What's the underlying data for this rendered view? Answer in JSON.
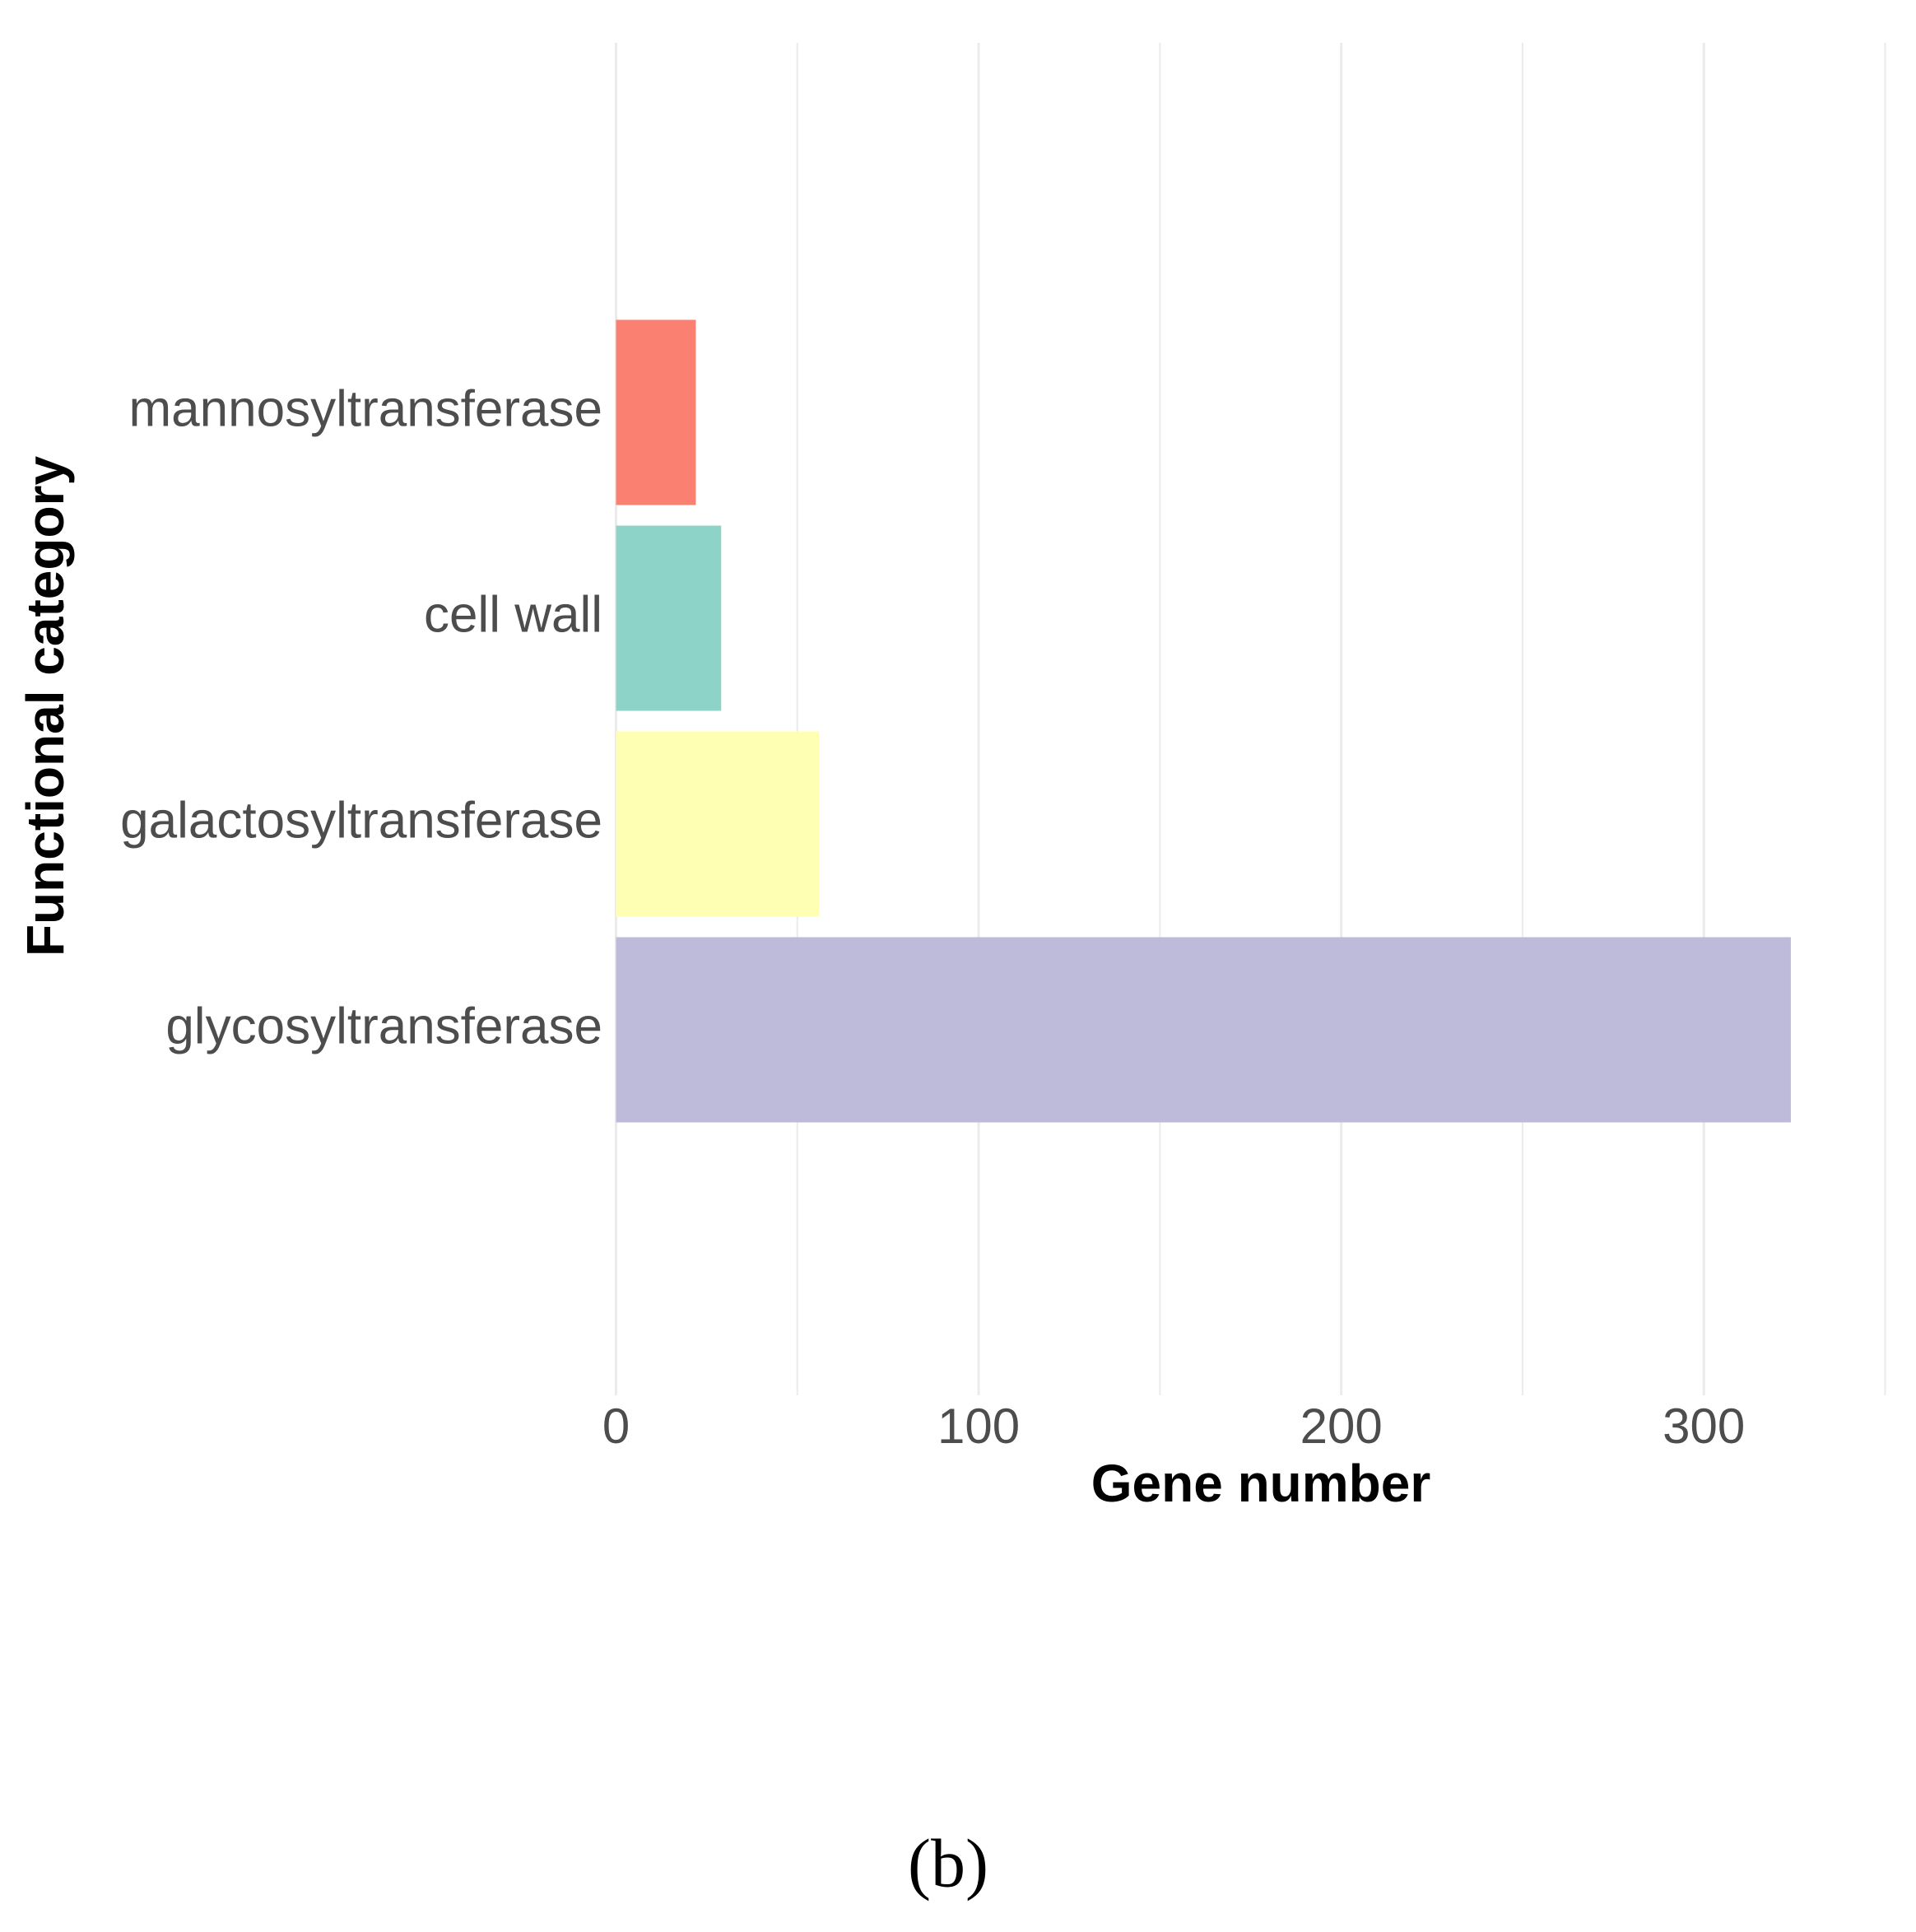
{
  "chart_data": {
    "type": "bar",
    "orientation": "horizontal",
    "x_label": "Gene number",
    "y_label": "Functional category",
    "categories": [
      "mannosyltransferase",
      "cell wall",
      "galactosyltransferase",
      "glycosyltransferase"
    ],
    "values": [
      22,
      29,
      56,
      324
    ],
    "colors": [
      "#fa8072",
      "#8dd3c7",
      "#ffffb3",
      "#bebada"
    ],
    "xlim": [
      0,
      350
    ],
    "xticks": [
      0,
      100,
      200,
      300
    ],
    "xminorticks": [
      50,
      150,
      250,
      350
    ],
    "grid": true
  },
  "caption": "(b)"
}
